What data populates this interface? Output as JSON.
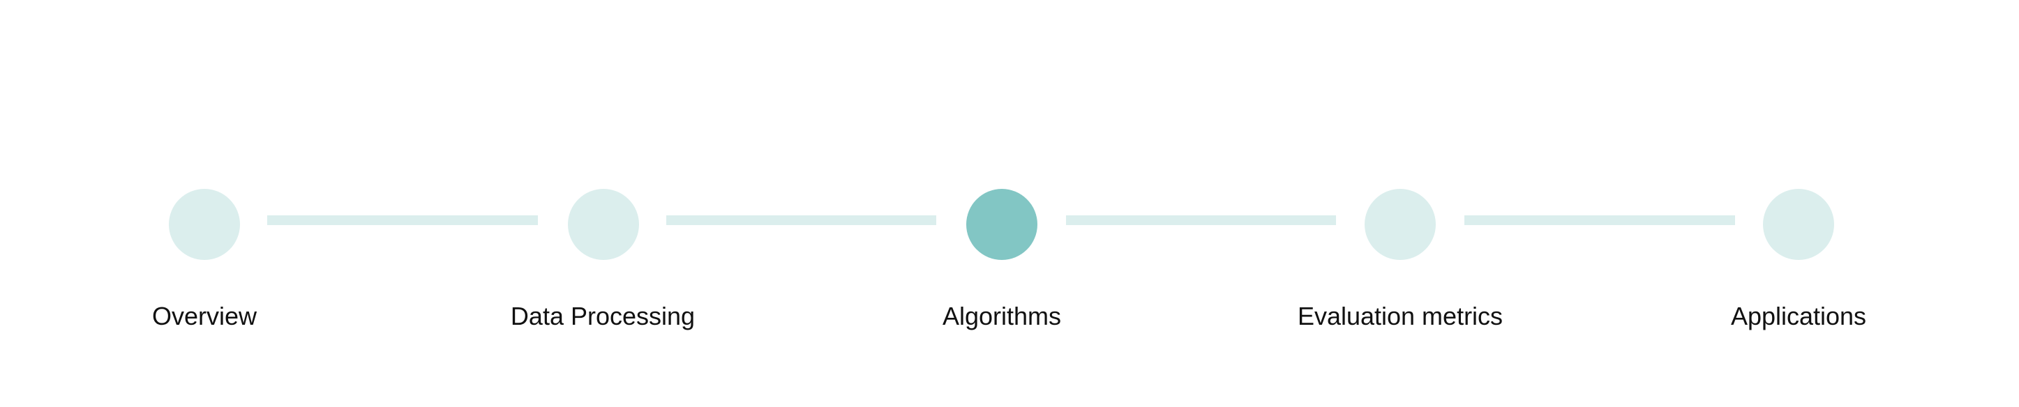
{
  "stepper": {
    "active_index": 2,
    "colors": {
      "inactive": "#dbeeed",
      "active": "#82c6c4",
      "connector": "#dbeeed",
      "label": "#111111"
    },
    "steps": [
      {
        "label": "Overview"
      },
      {
        "label": "Data Processing"
      },
      {
        "label": "Algorithms"
      },
      {
        "label": "Evaluation metrics"
      },
      {
        "label": "Applications"
      }
    ]
  }
}
